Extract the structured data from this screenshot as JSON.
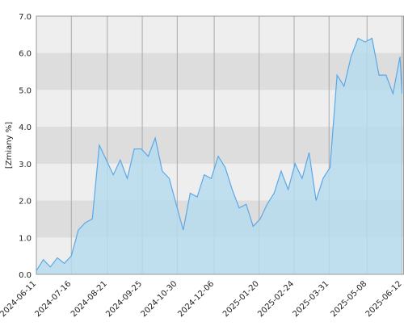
{
  "chart_data": {
    "type": "area",
    "ylabel": "[Zmiany %]",
    "x": [
      "2024-06-11",
      "2024-06-18",
      "2024-06-25",
      "2024-07-02",
      "2024-07-09",
      "2024-07-16",
      "2024-07-23",
      "2024-07-30",
      "2024-08-06",
      "2024-08-13",
      "2024-08-20",
      "2024-08-27",
      "2024-09-03",
      "2024-09-10",
      "2024-09-17",
      "2024-09-24",
      "2024-10-01",
      "2024-10-08",
      "2024-10-15",
      "2024-10-22",
      "2024-10-29",
      "2024-11-05",
      "2024-11-12",
      "2024-11-19",
      "2024-11-26",
      "2024-12-03",
      "2024-12-10",
      "2024-12-17",
      "2024-12-24",
      "2024-12-31",
      "2025-01-07",
      "2025-01-14",
      "2025-01-21",
      "2025-01-28",
      "2025-02-04",
      "2025-02-11",
      "2025-02-18",
      "2025-02-25",
      "2025-03-04",
      "2025-03-11",
      "2025-03-18",
      "2025-03-25",
      "2025-04-01",
      "2025-04-08",
      "2025-04-15",
      "2025-04-22",
      "2025-04-29",
      "2025-05-06",
      "2025-05-13",
      "2025-05-20",
      "2025-05-27",
      "2025-06-03",
      "2025-06-10",
      "2025-06-12"
    ],
    "values": [
      0.1,
      0.4,
      0.2,
      0.45,
      0.3,
      0.5,
      1.2,
      1.4,
      1.5,
      3.5,
      3.1,
      2.7,
      3.1,
      2.6,
      3.4,
      3.4,
      3.2,
      3.7,
      2.8,
      2.6,
      1.9,
      1.2,
      2.2,
      2.1,
      2.7,
      2.6,
      3.2,
      2.9,
      2.3,
      1.8,
      1.9,
      1.3,
      1.5,
      1.9,
      2.2,
      2.8,
      2.3,
      3.0,
      2.6,
      3.3,
      2.0,
      2.6,
      2.9,
      5.4,
      5.1,
      5.9,
      6.4,
      6.3,
      6.4,
      5.4,
      5.4,
      4.9,
      5.9,
      4.9
    ],
    "line_color": "#5aa8e8",
    "fill_color": "#b6dcee",
    "xlim": [
      "2024-06-11",
      "2025-06-14"
    ],
    "xticks": [
      "2024-06-11",
      "2024-07-16",
      "2024-08-21",
      "2024-09-25",
      "2024-10-30",
      "2024-12-06",
      "2025-01-20",
      "2025-02-24",
      "2025-03-31",
      "2025-05-08",
      "2025-06-12"
    ],
    "ylim": [
      0,
      7
    ],
    "yticks": [
      {
        "value": 0,
        "label": "0.0"
      },
      {
        "value": 1,
        "label": "1.0"
      },
      {
        "value": 2,
        "label": "2.0"
      },
      {
        "value": 3,
        "label": "3.0"
      },
      {
        "value": 4,
        "label": "4.0"
      },
      {
        "value": 5,
        "label": "5.0"
      },
      {
        "value": 6,
        "label": "6.0"
      },
      {
        "value": 7,
        "label": "7.0"
      }
    ],
    "grid": true
  }
}
